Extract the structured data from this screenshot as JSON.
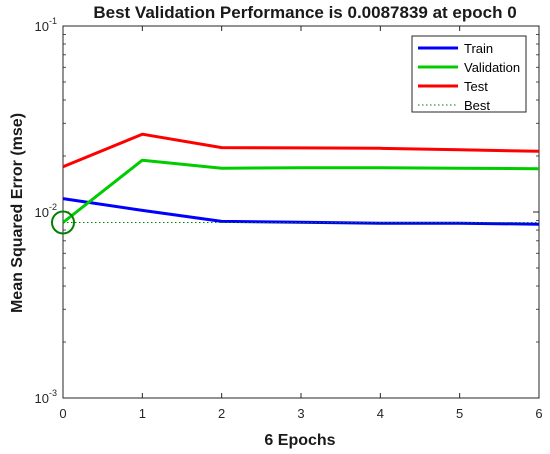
{
  "chart_data": {
    "type": "line",
    "title": "Best Validation Performance is 0.0087839 at epoch 0",
    "xlabel": "6 Epochs",
    "ylabel": "Mean Squared Error  (mse)",
    "yscale": "log",
    "xlim": [
      0,
      6
    ],
    "ylim": [
      0.001,
      0.1
    ],
    "x_ticks": [
      "0",
      "1",
      "2",
      "3",
      "4",
      "5",
      "6"
    ],
    "y_ticks": [
      {
        "base": "10",
        "exp": "-1",
        "value": 0.1
      },
      {
        "base": "10",
        "exp": "-2",
        "value": 0.01
      },
      {
        "base": "10",
        "exp": "-3",
        "value": 0.001
      }
    ],
    "legend_position": "top-right",
    "grid": false,
    "x": [
      0,
      1,
      2,
      3,
      4,
      5,
      6
    ],
    "series": [
      {
        "name": "Train",
        "color": "#0000ff",
        "style": "solid",
        "values": [
          0.0118,
          0.0102,
          0.0089,
          0.0088,
          0.0087,
          0.0087,
          0.0086
        ]
      },
      {
        "name": "Validation",
        "color": "#00cc00",
        "style": "solid",
        "values": [
          0.0087839,
          0.019,
          0.0172,
          0.0173,
          0.0173,
          0.0172,
          0.0171
        ]
      },
      {
        "name": "Test",
        "color": "#ff0000",
        "style": "solid",
        "values": [
          0.0175,
          0.0262,
          0.0222,
          0.0221,
          0.022,
          0.0216,
          0.0212
        ]
      },
      {
        "name": "Best",
        "color": "#008000",
        "style": "dotted",
        "values": [
          0.0087839,
          0.0087839,
          0.0087839,
          0.0087839,
          0.0087839,
          0.0087839,
          0.0087839
        ]
      }
    ],
    "best_marker": {
      "x": 0,
      "y": 0.0087839,
      "color": "#008000"
    }
  }
}
